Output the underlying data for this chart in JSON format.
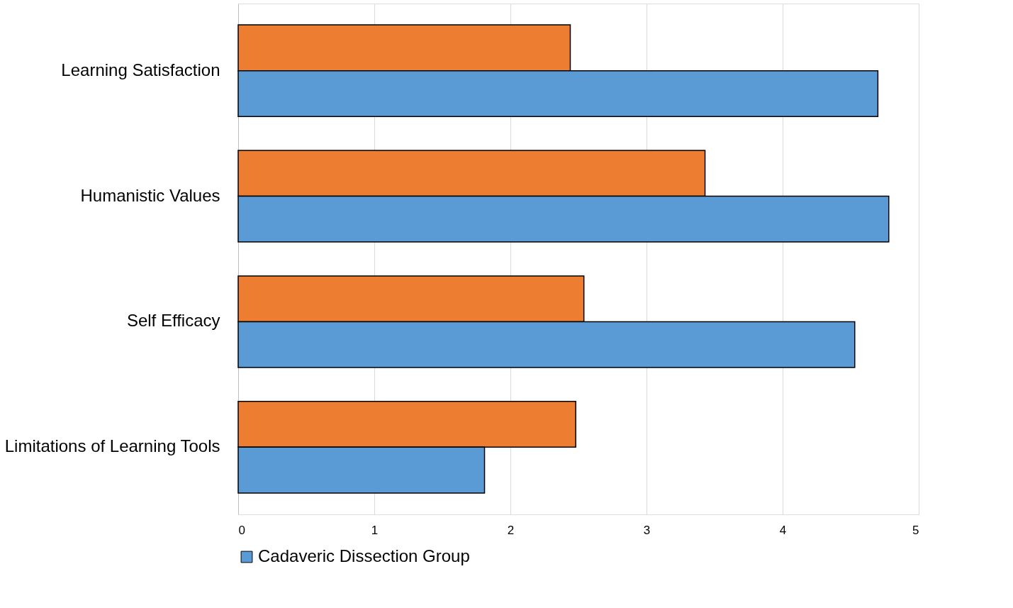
{
  "chart_data": {
    "type": "bar",
    "orientation": "horizontal",
    "categories": [
      "Learning Satisfaction",
      "Humanistic Values",
      "Self Efficacy",
      "Limitations of Learning Tools"
    ],
    "series": [
      {
        "color": "#ed7d31",
        "values": [
          2.44,
          3.43,
          2.54,
          2.48
        ]
      },
      {
        "name": "Cadaveric Dissection Group",
        "color": "#5b9bd5",
        "values": [
          4.7,
          4.78,
          4.53,
          1.81
        ]
      }
    ],
    "xlim": [
      0,
      5
    ],
    "xticks": [
      0,
      1,
      2,
      3,
      4,
      5
    ],
    "grid": "x",
    "legend": "bottom"
  }
}
